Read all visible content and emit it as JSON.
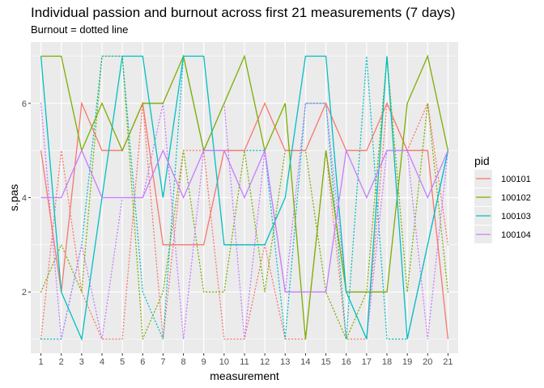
{
  "chart_data": {
    "type": "line",
    "title": "Individual passion and burnout across first 21 measurements (7 days)",
    "subtitle": "Burnout = dotted line",
    "xlabel": "measurement",
    "ylabel": "s.pas",
    "x": [
      1,
      2,
      3,
      4,
      5,
      6,
      7,
      8,
      9,
      10,
      11,
      12,
      13,
      14,
      15,
      16,
      17,
      18,
      19,
      20,
      21
    ],
    "xlim": [
      0.5,
      21.5
    ],
    "ylim": [
      0.7,
      7.3
    ],
    "y_ticks": [
      2,
      4,
      6
    ],
    "legend": {
      "title": "pid",
      "position": "right"
    },
    "grid": true,
    "panel_background": "#ebebeb",
    "series": [
      {
        "name": "100101",
        "color": "#F8766D",
        "passion": [
          5,
          2,
          6,
          5,
          5,
          6,
          3,
          3,
          3,
          5,
          5,
          6,
          5,
          5,
          6,
          5,
          5,
          6,
          5,
          5,
          1
        ],
        "burnout": [
          1,
          5,
          2,
          1,
          1,
          6,
          1,
          5,
          5,
          1,
          1,
          3,
          1,
          1,
          5,
          1,
          1,
          6,
          5,
          6,
          3
        ]
      },
      {
        "name": "100102",
        "color": "#7CAE00",
        "passion": [
          7,
          7,
          5,
          6,
          5,
          6,
          6,
          7,
          5,
          6,
          7,
          5,
          6,
          1,
          5,
          2,
          2,
          2,
          6,
          7,
          5
        ],
        "burnout": [
          2,
          3,
          2,
          7,
          7,
          1,
          2,
          5,
          2,
          2,
          5,
          2,
          5,
          5,
          2,
          1,
          2,
          7,
          2,
          6,
          2
        ]
      },
      {
        "name": "100103",
        "color": "#00BFC4",
        "passion": [
          7,
          2,
          1,
          4,
          7,
          7,
          4,
          7,
          7,
          3,
          3,
          3,
          4,
          7,
          7,
          2,
          1,
          7,
          1,
          3,
          5
        ],
        "burnout": [
          1,
          1,
          3,
          7,
          7,
          2,
          1,
          7,
          5,
          5,
          5,
          5,
          1,
          6,
          6,
          1,
          7,
          1,
          1,
          3,
          5
        ]
      },
      {
        "name": "100104",
        "color": "#C77CFF",
        "passion": [
          4,
          4,
          5,
          4,
          4,
          4,
          5,
          4,
          5,
          5,
          4,
          5,
          2,
          2,
          2,
          5,
          4,
          5,
          5,
          4,
          5
        ],
        "burnout": [
          6,
          1,
          3,
          1,
          4,
          4,
          6,
          1,
          5,
          6,
          1,
          5,
          2,
          6,
          6,
          2,
          1,
          5,
          5,
          1,
          5
        ]
      }
    ]
  }
}
